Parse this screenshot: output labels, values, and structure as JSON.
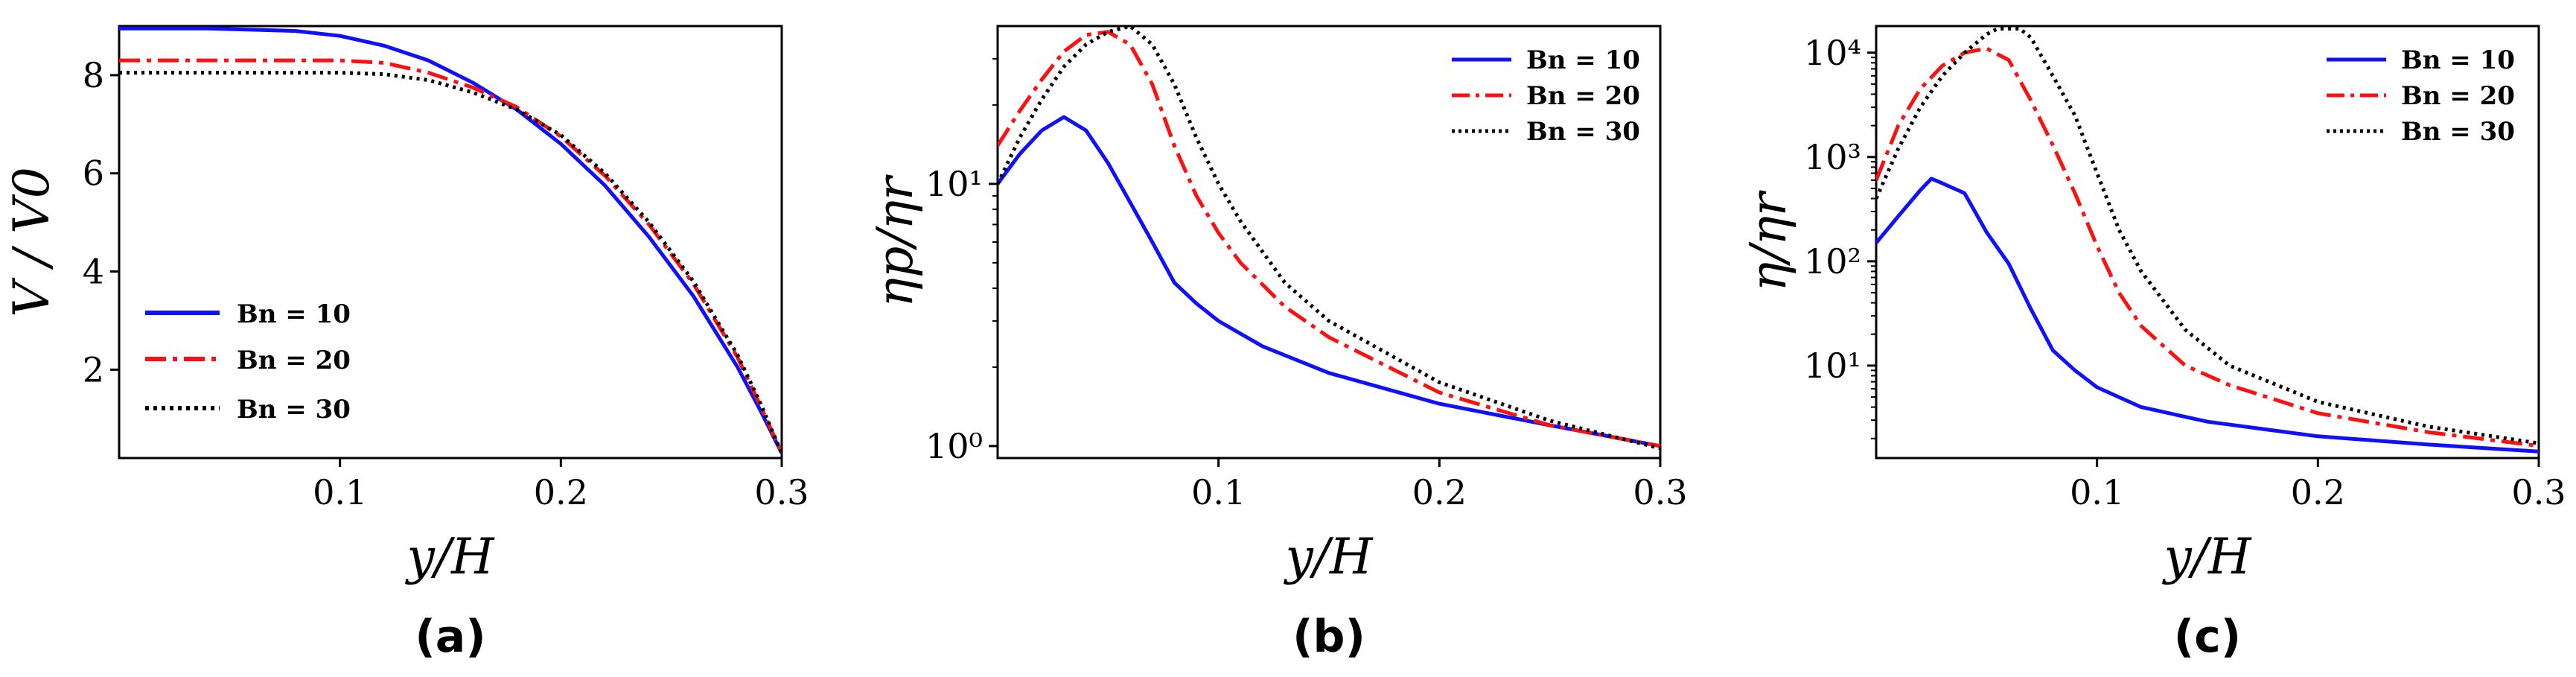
{
  "colors": {
    "Bn = 10": "#1010ff",
    "Bn = 20": "#ff1010",
    "Bn = 30": "#000000"
  },
  "chart_data": [
    {
      "type": "line",
      "panel_label": "(a)",
      "xlabel": "y/H",
      "ylabel": "V / V0",
      "yscale": "linear",
      "xlim": [
        0.0,
        0.3
      ],
      "ylim": [
        0.2,
        9.0
      ],
      "xticks": [
        0.1,
        0.2,
        0.3
      ],
      "xtick_labels": [
        "0.1",
        "0.2",
        "0.3"
      ],
      "yticks": [
        2,
        4,
        6,
        8
      ],
      "ytick_labels": [
        "2",
        "4",
        "6",
        "8"
      ],
      "legend_position": "lower-left",
      "series": [
        {
          "name": "Bn = 10",
          "style": "solid",
          "x": [
            0.0,
            0.04,
            0.08,
            0.1,
            0.12,
            0.14,
            0.16,
            0.18,
            0.2,
            0.22,
            0.24,
            0.26,
            0.28,
            0.29,
            0.3
          ],
          "y": [
            8.95,
            8.95,
            8.9,
            8.8,
            8.6,
            8.3,
            7.85,
            7.3,
            6.6,
            5.75,
            4.7,
            3.5,
            2.05,
            1.2,
            0.3
          ]
        },
        {
          "name": "Bn = 20",
          "style": "dashdot",
          "x": [
            0.0,
            0.04,
            0.08,
            0.1,
            0.12,
            0.14,
            0.16,
            0.18,
            0.2,
            0.22,
            0.24,
            0.26,
            0.28,
            0.29,
            0.3
          ],
          "y": [
            8.3,
            8.3,
            8.3,
            8.3,
            8.25,
            8.05,
            7.75,
            7.35,
            6.75,
            5.95,
            4.95,
            3.75,
            2.25,
            1.3,
            0.3
          ]
        },
        {
          "name": "Bn = 30",
          "style": "dotted",
          "x": [
            0.0,
            0.04,
            0.08,
            0.1,
            0.12,
            0.14,
            0.16,
            0.18,
            0.2,
            0.22,
            0.24,
            0.26,
            0.28,
            0.29,
            0.3
          ],
          "y": [
            8.05,
            8.05,
            8.05,
            8.05,
            8.02,
            7.9,
            7.65,
            7.3,
            6.78,
            6.0,
            5.0,
            3.8,
            2.3,
            1.35,
            0.3
          ]
        }
      ]
    },
    {
      "type": "line",
      "panel_label": "(b)",
      "xlabel": "y/H",
      "ylabel": "ηp/ηr",
      "yscale": "log",
      "xlim": [
        0.0,
        0.3
      ],
      "ylim": [
        0.9,
        40
      ],
      "xticks": [
        0.1,
        0.2,
        0.3
      ],
      "xtick_labels": [
        "0.1",
        "0.2",
        "0.3"
      ],
      "yticks": [
        1,
        10
      ],
      "ytick_labels": [
        "10⁰",
        "10¹"
      ],
      "legend_position": "top-right",
      "series": [
        {
          "name": "Bn = 10",
          "style": "solid",
          "x": [
            0.0,
            0.01,
            0.02,
            0.03,
            0.04,
            0.05,
            0.06,
            0.07,
            0.08,
            0.09,
            0.1,
            0.12,
            0.15,
            0.2,
            0.25,
            0.3
          ],
          "y": [
            10,
            13,
            16,
            18,
            16,
            12,
            8.5,
            6,
            4.2,
            3.5,
            3.0,
            2.4,
            1.9,
            1.45,
            1.2,
            1.0
          ]
        },
        {
          "name": "Bn = 20",
          "style": "dashdot",
          "x": [
            0.0,
            0.01,
            0.02,
            0.03,
            0.04,
            0.05,
            0.06,
            0.07,
            0.08,
            0.09,
            0.1,
            0.11,
            0.13,
            0.15,
            0.2,
            0.25,
            0.3
          ],
          "y": [
            14,
            19,
            25,
            32,
            37,
            38,
            34,
            24,
            14,
            9,
            6.5,
            5.0,
            3.4,
            2.6,
            1.6,
            1.2,
            1.0
          ]
        },
        {
          "name": "Bn = 30",
          "style": "dotted",
          "x": [
            0.0,
            0.01,
            0.02,
            0.03,
            0.04,
            0.05,
            0.06,
            0.07,
            0.08,
            0.09,
            0.1,
            0.11,
            0.13,
            0.15,
            0.2,
            0.25,
            0.3
          ],
          "y": [
            10,
            15,
            21,
            28,
            34,
            38,
            40,
            34,
            24,
            15,
            10,
            7.2,
            4.2,
            3.0,
            1.75,
            1.25,
            0.98
          ]
        }
      ]
    },
    {
      "type": "line",
      "panel_label": "(c)",
      "xlabel": "y/H",
      "ylabel": "η/ηr",
      "yscale": "log",
      "xlim": [
        0.0,
        0.3
      ],
      "ylim": [
        1.3,
        18000
      ],
      "xticks": [
        0.1,
        0.2,
        0.3
      ],
      "xtick_labels": [
        "0.1",
        "0.2",
        "0.3"
      ],
      "yticks": [
        10,
        100,
        1000,
        10000
      ],
      "ytick_labels": [
        "10¹",
        "10²",
        "10³",
        "10⁴"
      ],
      "legend_position": "top-right",
      "series": [
        {
          "name": "Bn = 10",
          "style": "solid",
          "x": [
            0.0,
            0.01,
            0.02,
            0.025,
            0.03,
            0.04,
            0.05,
            0.06,
            0.07,
            0.08,
            0.09,
            0.1,
            0.12,
            0.15,
            0.2,
            0.25,
            0.3
          ],
          "y": [
            150,
            270,
            480,
            620,
            560,
            450,
            190,
            95,
            35,
            14,
            9,
            6.2,
            4.0,
            2.9,
            2.1,
            1.75,
            1.5
          ]
        },
        {
          "name": "Bn = 20",
          "style": "dashdot",
          "x": [
            0.0,
            0.01,
            0.02,
            0.03,
            0.04,
            0.05,
            0.06,
            0.07,
            0.08,
            0.09,
            0.1,
            0.11,
            0.12,
            0.14,
            0.16,
            0.2,
            0.25,
            0.3
          ],
          "y": [
            600,
            2000,
            4500,
            7500,
            10000,
            11000,
            8500,
            3500,
            1300,
            450,
            140,
            50,
            24,
            10,
            6.5,
            3.5,
            2.3,
            1.7
          ]
        },
        {
          "name": "Bn = 30",
          "style": "dotted",
          "x": [
            0.0,
            0.01,
            0.02,
            0.03,
            0.04,
            0.05,
            0.055,
            0.065,
            0.07,
            0.08,
            0.09,
            0.1,
            0.11,
            0.12,
            0.14,
            0.16,
            0.2,
            0.25,
            0.3
          ],
          "y": [
            400,
            1200,
            3000,
            6000,
            10000,
            15000,
            17000,
            17000,
            14000,
            6000,
            2500,
            700,
            200,
            80,
            22,
            10,
            4.5,
            2.6,
            1.8
          ]
        }
      ]
    }
  ]
}
